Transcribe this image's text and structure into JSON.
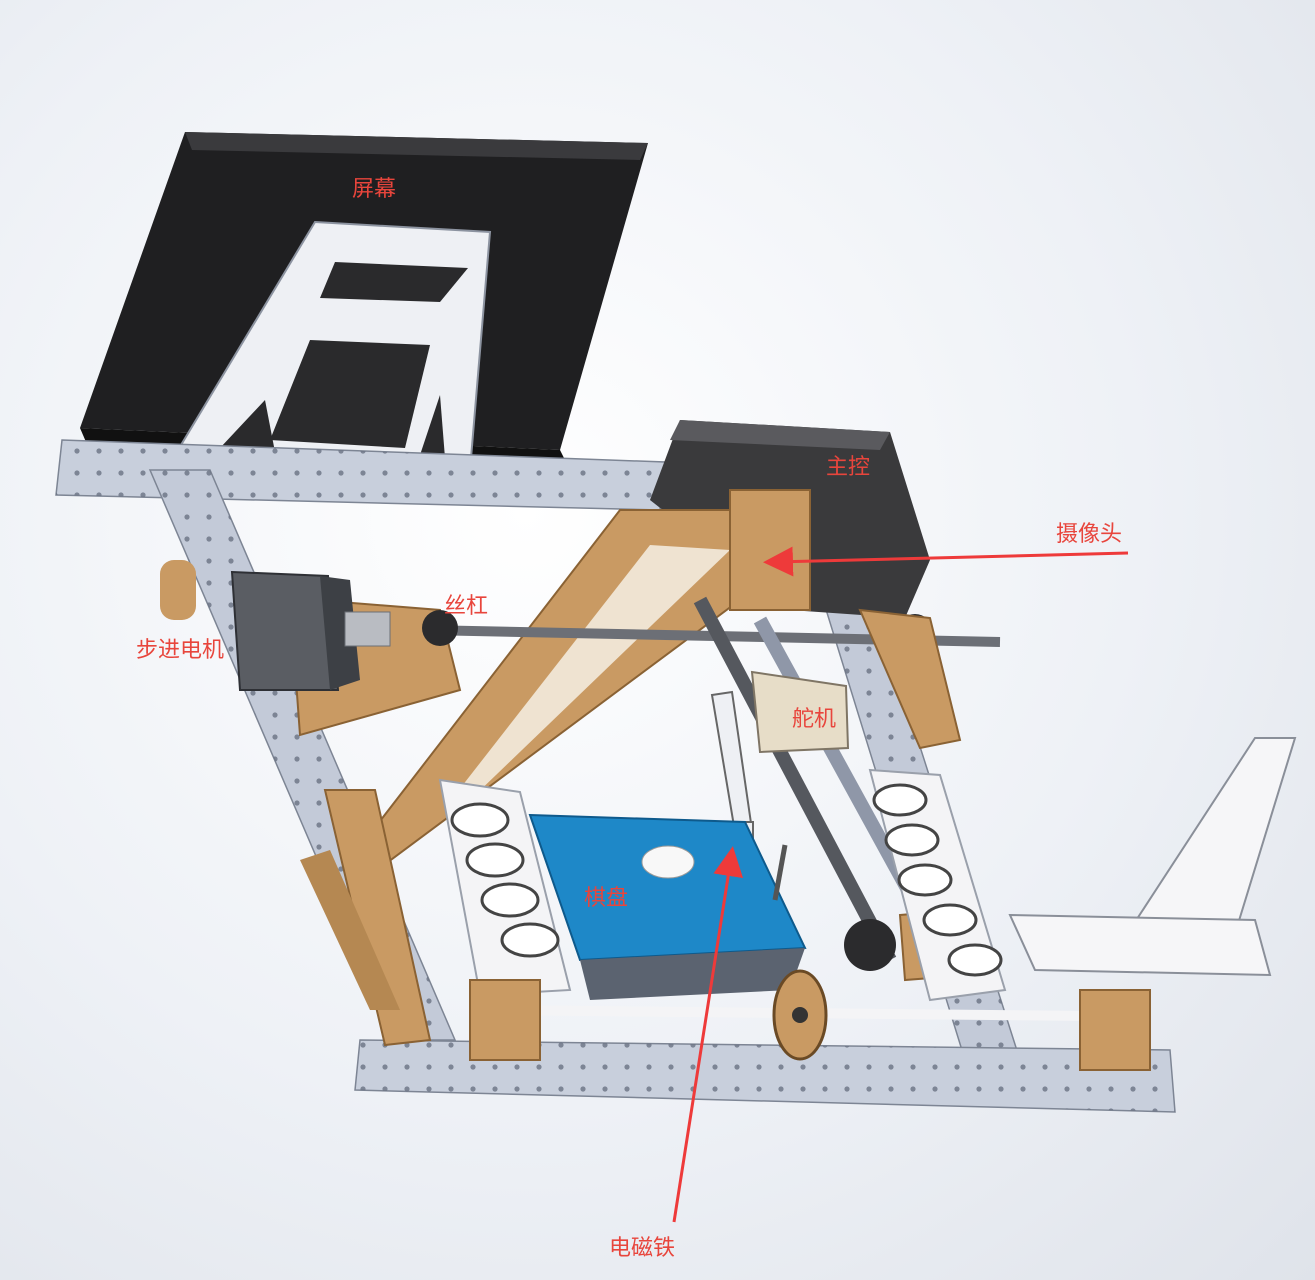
{
  "labels": {
    "screen": "屏幕",
    "main_control": "主控",
    "camera": "摄像头",
    "lead_screw": "丝杠",
    "stepper_motor": "步进电机",
    "servo": "舵机",
    "chessboard": "棋盘",
    "electromagnet": "电磁铁"
  },
  "colors": {
    "label": "#e8453c",
    "arrow": "#ee3a3a",
    "screen": "#1f1f21",
    "aluminum_frame": "#c5cbd8",
    "wood": "#c99a63",
    "chessboard": "#1e88c8",
    "main_box": "#3a3a3c",
    "servo": "#e7ddc8"
  }
}
